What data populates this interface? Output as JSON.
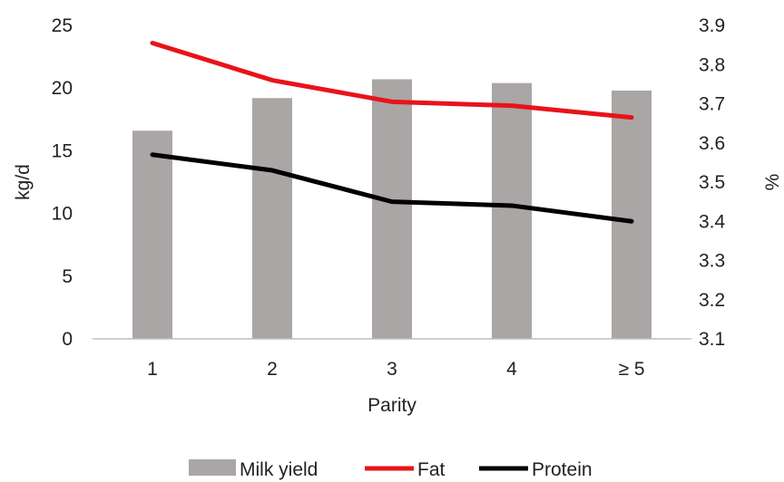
{
  "chart_data": {
    "type": "bar",
    "categories": [
      "1",
      "2",
      "3",
      "4",
      "≥ 5"
    ],
    "xlabel": "Parity",
    "ylabel": "kg/d",
    "y2label": "%",
    "ylim": [
      0,
      25
    ],
    "yticks": [
      "0",
      "5",
      "10",
      "15",
      "20",
      "25"
    ],
    "y2lim": [
      3.1,
      3.9
    ],
    "y2ticks": [
      "3.1",
      "3.2",
      "3.3",
      "3.4",
      "3.5",
      "3.6",
      "3.7",
      "3.8",
      "3.9"
    ],
    "grid": false,
    "legend_position": "bottom",
    "series": [
      {
        "name": "Milk yield",
        "type": "bar",
        "axis": "left",
        "color": "#aaa6a5",
        "values": [
          16.6,
          19.2,
          20.7,
          20.4,
          19.8
        ]
      },
      {
        "name": "Fat",
        "type": "line",
        "axis": "right",
        "color": "#e8131a",
        "values": [
          3.855,
          3.76,
          3.705,
          3.695,
          3.665
        ]
      },
      {
        "name": "Protein",
        "type": "line",
        "axis": "right",
        "color": "#000000",
        "values": [
          3.57,
          3.53,
          3.45,
          3.44,
          3.4
        ]
      }
    ]
  }
}
